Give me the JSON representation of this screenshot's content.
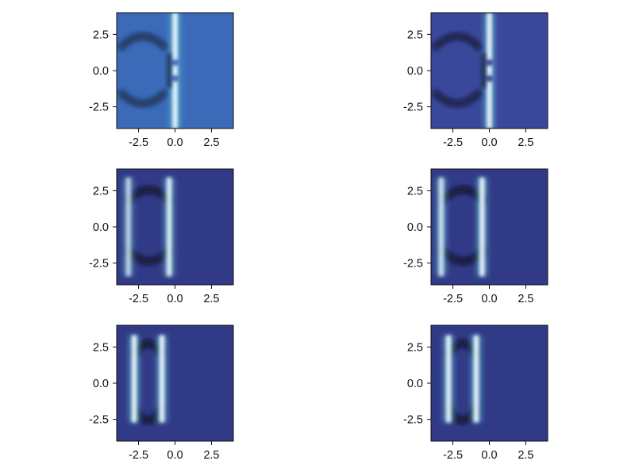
{
  "chart_data": [
    {
      "type": "heatmap",
      "title": "",
      "xlabel": "",
      "ylabel": "",
      "xlim": [
        -4,
        4
      ],
      "ylim": [
        -4,
        4
      ],
      "xticks": [
        -2.5,
        0.0,
        2.5
      ],
      "yticks": [
        -2.5,
        0.0,
        2.5
      ],
      "xticklabels": [
        "-2.5",
        "0.0",
        "2.5"
      ],
      "yticklabels": [
        "-2.5",
        "0.0",
        "2.5"
      ],
      "background": "#3a6ab8",
      "bands": [
        {
          "x": 0.0,
          "y": [
            -4,
            4
          ],
          "intensity": 1.0,
          "gaps": [
            0.55,
            -0.55
          ]
        },
        {
          "x": -0.4,
          "y": [
            -1.2,
            1.2
          ],
          "intensity": -0.7
        }
      ],
      "arcs": [
        {
          "x": [
            -3.8,
            -0.6
          ],
          "y": 2.3,
          "intensity": -0.6
        },
        {
          "x": [
            -3.8,
            -0.6
          ],
          "y": -2.2,
          "intensity": -0.6
        }
      ]
    },
    {
      "type": "heatmap",
      "title": "",
      "xlabel": "",
      "ylabel": "",
      "xlim": [
        -4,
        4
      ],
      "ylim": [
        -4,
        4
      ],
      "xticks": [
        -2.5,
        0.0,
        2.5
      ],
      "yticks": [
        -2.5,
        0.0,
        2.5
      ],
      "xticklabels": [
        "-2.5",
        "0.0",
        "2.5"
      ],
      "yticklabels": [
        "-2.5",
        "0.0",
        "2.5"
      ],
      "background": "#39489a",
      "bands": [
        {
          "x": 0.0,
          "y": [
            -4,
            4
          ],
          "intensity": 1.0,
          "gaps": [
            0.55,
            -0.55
          ]
        },
        {
          "x": -0.4,
          "y": [
            -1.2,
            1.2
          ],
          "intensity": -0.7
        }
      ],
      "arcs": [
        {
          "x": [
            -3.8,
            -0.6
          ],
          "y": 2.3,
          "intensity": -0.85
        },
        {
          "x": [
            -3.8,
            -0.6
          ],
          "y": -2.2,
          "intensity": -0.85
        }
      ]
    },
    {
      "type": "heatmap",
      "title": "",
      "xlabel": "",
      "ylabel": "",
      "xlim": [
        -4,
        4
      ],
      "ylim": [
        -4,
        4
      ],
      "xticks": [
        -2.5,
        0.0,
        2.5
      ],
      "yticks": [
        -2.5,
        0.0,
        2.5
      ],
      "xticklabels": [
        "-2.5",
        "0.0",
        "2.5"
      ],
      "yticklabels": [
        "-2.5",
        "0.0",
        "2.5"
      ],
      "background": "#303a86",
      "bands": [
        {
          "x": -3.2,
          "y": [
            -3.4,
            3.4
          ],
          "intensity": 0.75
        },
        {
          "x": -0.4,
          "y": [
            -3.4,
            3.4
          ],
          "intensity": 0.95
        }
      ],
      "arcs": [
        {
          "x": [
            -3.3,
            -0.3
          ],
          "y": 2.5,
          "intensity": -1.0
        },
        {
          "x": [
            -3.3,
            -0.3
          ],
          "y": -2.3,
          "intensity": -1.0
        }
      ]
    },
    {
      "type": "heatmap",
      "title": "",
      "xlabel": "",
      "ylabel": "",
      "xlim": [
        -4,
        4
      ],
      "ylim": [
        -4,
        4
      ],
      "xticks": [
        -2.5,
        0.0,
        2.5
      ],
      "yticks": [
        -2.5,
        0.0,
        2.5
      ],
      "xticklabels": [
        "-2.5",
        "0.0",
        "2.5"
      ],
      "yticklabels": [
        "-2.5",
        "0.0",
        "2.5"
      ],
      "background": "#303a86",
      "bands": [
        {
          "x": -3.3,
          "y": [
            -3.4,
            3.4
          ],
          "intensity": 0.85
        },
        {
          "x": -0.5,
          "y": [
            -3.4,
            3.4
          ],
          "intensity": 1.0
        }
      ],
      "arcs": [
        {
          "x": [
            -3.3,
            -0.3
          ],
          "y": 2.5,
          "intensity": -1.0
        },
        {
          "x": [
            -3.3,
            -0.3
          ],
          "y": -2.3,
          "intensity": -1.0
        }
      ]
    },
    {
      "type": "heatmap",
      "title": "",
      "xlabel": "",
      "ylabel": "",
      "xlim": [
        -4,
        4
      ],
      "ylim": [
        -4,
        4
      ],
      "xticks": [
        -2.5,
        0.0,
        2.5
      ],
      "yticks": [
        -2.5,
        0.0,
        2.5
      ],
      "xticklabels": [
        "-2.5",
        "0.0",
        "2.5"
      ],
      "yticklabels": [
        "-2.5",
        "0.0",
        "2.5"
      ],
      "background": "#303a86",
      "bands": [
        {
          "x": -2.8,
          "y": [
            -2.7,
            3.3
          ],
          "intensity": 1.0
        },
        {
          "x": -0.9,
          "y": [
            -2.7,
            3.3
          ],
          "intensity": 1.0
        }
      ],
      "arcs": [
        {
          "x": [
            -2.8,
            -0.9
          ],
          "y": 2.7,
          "intensity": -1.0
        },
        {
          "x": [
            -2.8,
            -0.9
          ],
          "y": -2.5,
          "intensity": -1.0
        }
      ]
    },
    {
      "type": "heatmap",
      "title": "",
      "xlabel": "",
      "ylabel": "",
      "xlim": [
        -4,
        4
      ],
      "ylim": [
        -4,
        4
      ],
      "xticks": [
        -2.5,
        0.0,
        2.5
      ],
      "yticks": [
        -2.5,
        0.0,
        2.5
      ],
      "xticklabels": [
        "-2.5",
        "0.0",
        "2.5"
      ],
      "yticklabels": [
        "-2.5",
        "0.0",
        "2.5"
      ],
      "background": "#303a86",
      "bands": [
        {
          "x": -2.8,
          "y": [
            -2.7,
            3.3
          ],
          "intensity": 1.0
        },
        {
          "x": -0.9,
          "y": [
            -2.7,
            3.3
          ],
          "intensity": 1.0
        }
      ],
      "arcs": [
        {
          "x": [
            -2.8,
            -0.9
          ],
          "y": 2.7,
          "intensity": -1.0
        },
        {
          "x": [
            -2.8,
            -0.9
          ],
          "y": -2.5,
          "intensity": -1.0
        }
      ]
    }
  ]
}
